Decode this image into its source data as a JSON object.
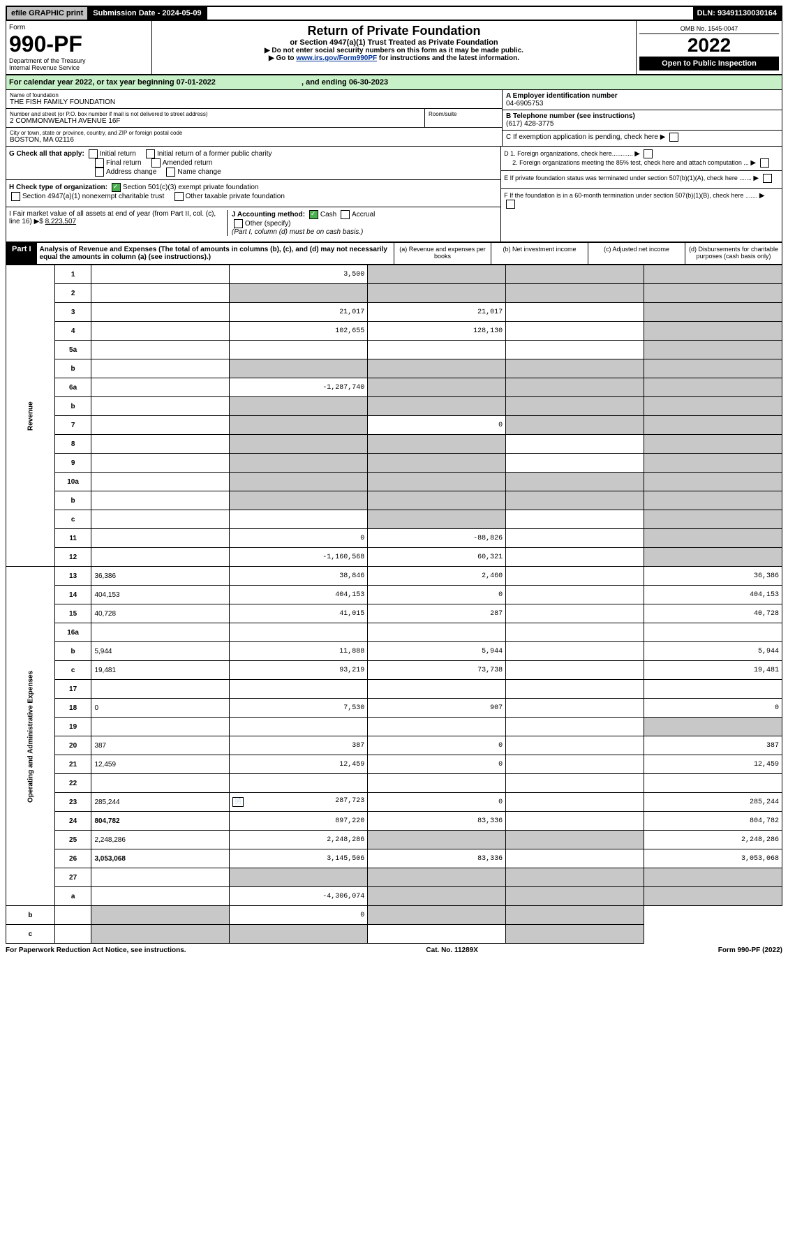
{
  "topbar": {
    "efile": "efile GRAPHIC print",
    "sub_date_label": "Submission Date - 2024-05-09",
    "dln": "DLN: 93491130030164"
  },
  "header": {
    "form_label": "Form",
    "form_num": "990-PF",
    "dept": "Department of the Treasury\nInternal Revenue Service",
    "title": "Return of Private Foundation",
    "sub_title": "or Section 4947(a)(1) Trust Treated as Private Foundation",
    "inst1": "▶ Do not enter social security numbers on this form as it may be made public.",
    "inst2": "▶ Go to",
    "link": "www.irs.gov/Form990PF",
    "inst3": "for instructions and the latest information.",
    "omb": "OMB No. 1545-0047",
    "year": "2022",
    "open": "Open to Public Inspection"
  },
  "cal": {
    "text1": "For calendar year 2022, or tax year beginning 07-01-2022",
    "text2": ", and ending 06-30-2023"
  },
  "info": {
    "name_label": "Name of foundation",
    "name": "THE FISH FAMILY FOUNDATION",
    "addr_label": "Number and street (or P.O. box number if mail is not delivered to street address)",
    "addr": "2 COMMONWEALTH AVENUE 16F",
    "room_label": "Room/suite",
    "city_label": "City or town, state or province, country, and ZIP or foreign postal code",
    "city": "BOSTON, MA  02116",
    "ein_label": "A Employer identification number",
    "ein": "04-6905753",
    "tel_label": "B Telephone number (see instructions)",
    "tel": "(617) 428-3775",
    "c_label": "C If exemption application is pending, check here",
    "d1": "D 1. Foreign organizations, check here............",
    "d2": "2. Foreign organizations meeting the 85% test, check here and attach computation ...",
    "e_label": "E  If private foundation status was terminated under section 507(b)(1)(A), check here .......",
    "f_label": "F  If the foundation is in a 60-month termination under section 507(b)(1)(B), check here .......",
    "g_label": "G Check all that apply:",
    "g_initial": "Initial return",
    "g_initial_former": "Initial return of a former public charity",
    "g_final": "Final return",
    "g_amended": "Amended return",
    "g_addr_change": "Address change",
    "g_name_change": "Name change",
    "h_label": "H Check type of organization:",
    "h_501c3": "Section 501(c)(3) exempt private foundation",
    "h_4947": "Section 4947(a)(1) nonexempt charitable trust",
    "h_other_tax": "Other taxable private foundation",
    "i_label": "I Fair market value of all assets at end of year (from Part II, col. (c), line 16) ▶$",
    "i_val": "8,223,507",
    "j_label": "J Accounting method:",
    "j_cash": "Cash",
    "j_accrual": "Accrual",
    "j_other": "Other (specify)",
    "j_note": "(Part I, column (d) must be on cash basis.)"
  },
  "part1": {
    "label": "Part I",
    "desc": "Analysis of Revenue and Expenses (The total of amounts in columns (b), (c), and (d) may not necessarily equal the amounts in column (a) (see instructions).)",
    "col_a": "(a)   Revenue and expenses per books",
    "col_b": "(b)  Net investment income",
    "col_c": "(c)  Adjusted net income",
    "col_d": "(d)  Disbursements for charitable purposes (cash basis only)"
  },
  "sections": {
    "rev": "Revenue",
    "ope": "Operating and Administrative Expenses"
  },
  "rows": [
    {
      "n": "1",
      "d": "",
      "a": "3,500",
      "b": "",
      "c": "",
      "shade_b": true,
      "shade_c": true,
      "shade_d": true
    },
    {
      "n": "2",
      "d": "",
      "a": "",
      "b": "",
      "c": "",
      "shade_a": true,
      "shade_b": true,
      "shade_c": true,
      "shade_d": true
    },
    {
      "n": "3",
      "d": "",
      "a": "21,017",
      "b": "21,017",
      "c": "",
      "shade_d": true
    },
    {
      "n": "4",
      "d": "",
      "a": "102,655",
      "b": "128,130",
      "c": "",
      "shade_d": true
    },
    {
      "n": "5a",
      "d": "",
      "a": "",
      "b": "",
      "c": "",
      "shade_d": true
    },
    {
      "n": "b",
      "d": "",
      "a": "",
      "b": "",
      "c": "",
      "shade_a": true,
      "shade_b": true,
      "shade_c": true,
      "shade_d": true
    },
    {
      "n": "6a",
      "d": "",
      "a": "-1,287,740",
      "b": "",
      "c": "",
      "shade_b": true,
      "shade_c": true,
      "shade_d": true
    },
    {
      "n": "b",
      "d": "",
      "a": "",
      "b": "",
      "c": "",
      "shade_a": true,
      "shade_b": true,
      "shade_c": true,
      "shade_d": true
    },
    {
      "n": "7",
      "d": "",
      "a": "",
      "b": "0",
      "c": "",
      "shade_a": true,
      "shade_c": true,
      "shade_d": true
    },
    {
      "n": "8",
      "d": "",
      "a": "",
      "b": "",
      "c": "",
      "shade_a": true,
      "shade_b": true,
      "shade_d": true
    },
    {
      "n": "9",
      "d": "",
      "a": "",
      "b": "",
      "c": "",
      "shade_a": true,
      "shade_b": true,
      "shade_d": true
    },
    {
      "n": "10a",
      "d": "",
      "a": "",
      "b": "",
      "c": "",
      "shade_a": true,
      "shade_b": true,
      "shade_c": true,
      "shade_d": true
    },
    {
      "n": "b",
      "d": "",
      "a": "",
      "b": "",
      "c": "",
      "shade_a": true,
      "shade_b": true,
      "shade_c": true,
      "shade_d": true
    },
    {
      "n": "c",
      "d": "",
      "a": "",
      "b": "",
      "c": "",
      "shade_b": true,
      "shade_d": true
    },
    {
      "n": "11",
      "d": "",
      "a": "0",
      "b": "-88,826",
      "c": "",
      "shade_d": true
    },
    {
      "n": "12",
      "d": "",
      "a": "-1,160,568",
      "b": "60,321",
      "c": "",
      "shade_d": true,
      "bold": true
    },
    {
      "n": "13",
      "d": "36,386",
      "a": "38,846",
      "b": "2,460",
      "c": ""
    },
    {
      "n": "14",
      "d": "404,153",
      "a": "404,153",
      "b": "0",
      "c": ""
    },
    {
      "n": "15",
      "d": "40,728",
      "a": "41,015",
      "b": "287",
      "c": ""
    },
    {
      "n": "16a",
      "d": "",
      "a": "",
      "b": "",
      "c": ""
    },
    {
      "n": "b",
      "d": "5,944",
      "a": "11,888",
      "b": "5,944",
      "c": ""
    },
    {
      "n": "c",
      "d": "19,481",
      "a": "93,219",
      "b": "73,738",
      "c": ""
    },
    {
      "n": "17",
      "d": "",
      "a": "",
      "b": "",
      "c": ""
    },
    {
      "n": "18",
      "d": "0",
      "a": "7,530",
      "b": "907",
      "c": ""
    },
    {
      "n": "19",
      "d": "",
      "a": "",
      "b": "",
      "c": "",
      "shade_d": true
    },
    {
      "n": "20",
      "d": "387",
      "a": "387",
      "b": "0",
      "c": ""
    },
    {
      "n": "21",
      "d": "12,459",
      "a": "12,459",
      "b": "0",
      "c": ""
    },
    {
      "n": "22",
      "d": "",
      "a": "",
      "b": "",
      "c": ""
    },
    {
      "n": "23",
      "d": "285,244",
      "a": "287,723",
      "b": "0",
      "c": "",
      "icon": true
    },
    {
      "n": "24",
      "d": "804,782",
      "a": "897,220",
      "b": "83,336",
      "c": "",
      "bold": true
    },
    {
      "n": "25",
      "d": "2,248,286",
      "a": "2,248,286",
      "b": "",
      "c": "",
      "shade_b": true,
      "shade_c": true
    },
    {
      "n": "26",
      "d": "3,053,068",
      "a": "3,145,506",
      "b": "83,336",
      "c": "",
      "bold": true
    },
    {
      "n": "27",
      "d": "",
      "a": "",
      "b": "",
      "c": "",
      "shade_a": true,
      "shade_b": true,
      "shade_c": true,
      "shade_d": true
    },
    {
      "n": "a",
      "d": "",
      "a": "-4,306,074",
      "b": "",
      "c": "",
      "shade_b": true,
      "shade_c": true,
      "shade_d": true,
      "bold": true
    },
    {
      "n": "b",
      "d": "",
      "a": "",
      "b": "0",
      "c": "",
      "shade_a": true,
      "shade_c": true,
      "shade_d": true,
      "bold": true
    },
    {
      "n": "c",
      "d": "",
      "a": "",
      "b": "",
      "c": "",
      "shade_a": true,
      "shade_b": true,
      "shade_d": true,
      "bold": true
    }
  ],
  "footer": {
    "left": "For Paperwork Reduction Act Notice, see instructions.",
    "mid": "Cat. No. 11289X",
    "right": "Form 990-PF (2022)"
  },
  "colors": {
    "green_bg": "#c8f0c8",
    "shade": "#c8c8c8",
    "link": "#003399"
  }
}
